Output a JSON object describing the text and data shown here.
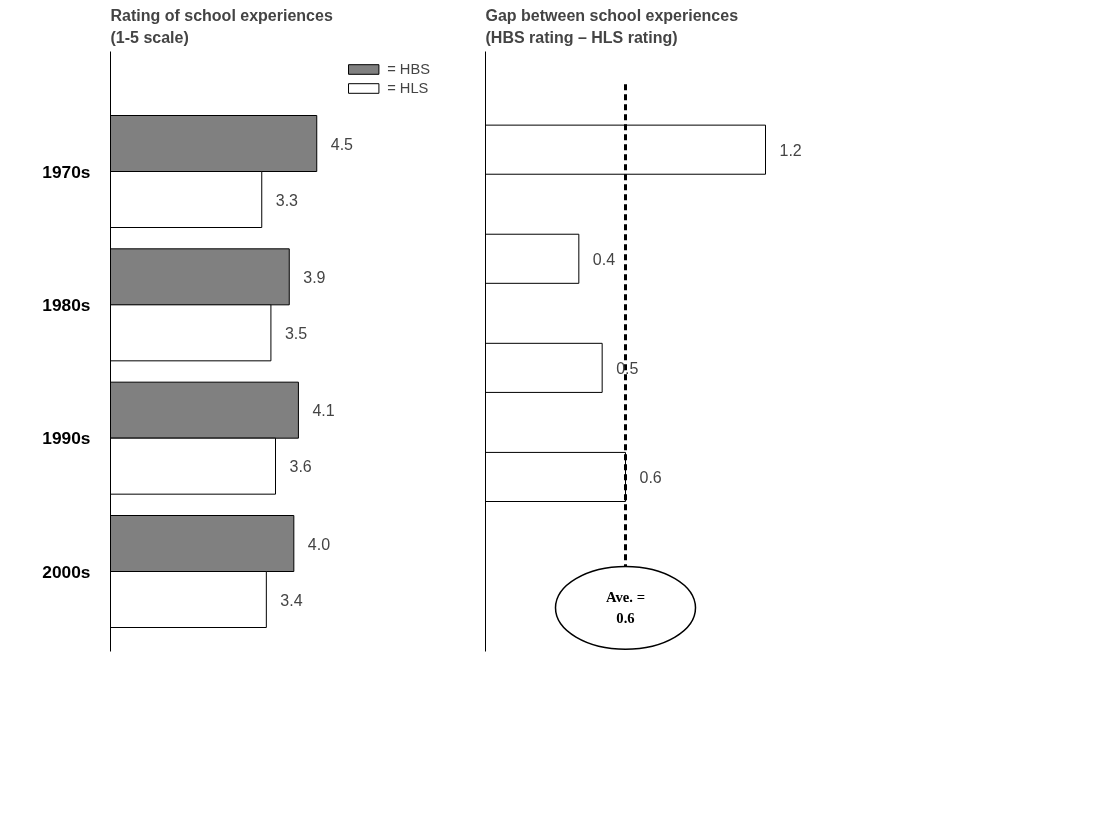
{
  "chart_data": [
    {
      "type": "bar",
      "orientation": "horizontal",
      "title": "Rating of school experiences\n(1-5 scale)",
      "categories": [
        "1970s",
        "1980s",
        "1990s",
        "2000s"
      ],
      "series": [
        {
          "name": "= HBS",
          "color": "#808080",
          "values": [
            4.5,
            3.9,
            4.1,
            4.0
          ],
          "value_labels": [
            "4.5",
            "3.9",
            "4.1",
            "4.0"
          ]
        },
        {
          "name": "= HLS",
          "color": "#ffffff",
          "values": [
            3.3,
            3.5,
            3.6,
            3.4
          ]
        }
      ],
      "data_labels": true,
      "legend": "top right"
    },
    {
      "type": "bar",
      "orientation": "horizontal",
      "title": "Gap between school experiences\n(HBS rating – HLS rating)",
      "categories": [
        null,
        null,
        null,
        null
      ],
      "series": [
        {
          "color": "#ffffff",
          "values": [
            1.2,
            0.4,
            0.5,
            0.6
          ]
        }
      ],
      "data_labels": true,
      "tick_labels": false,
      "ref_lines": [
        {
          "axis": "x",
          "value": 0.6,
          "label": "Ave. =\n0.6",
          "line_style": "dashed",
          "color": "#000000"
        }
      ]
    }
  ]
}
